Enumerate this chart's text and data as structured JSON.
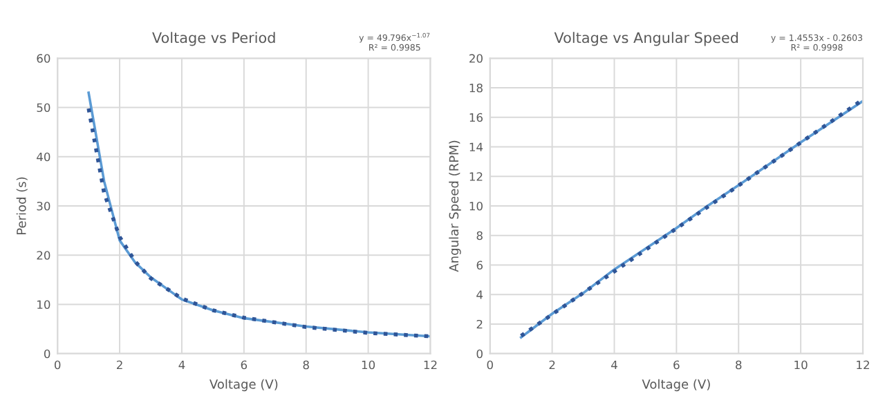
{
  "chart_data": [
    {
      "type": "line",
      "title": "Voltage vs Period",
      "xlabel": "Voltage (V)",
      "ylabel": "Period (s)",
      "annotations": [
        "y = 49.796x$^{−1.07}$\nR² = 0.9985"
      ],
      "series": [
        {
          "color": "#5b9bd5",
          "line_style": "solid",
          "x": [
            1,
            1.5,
            2,
            2.5,
            3,
            4,
            5,
            6,
            8,
            10,
            12
          ],
          "values": [
            53,
            35,
            23,
            18.5,
            15.5,
            11,
            8.8,
            7.2,
            5.5,
            4.3,
            3.5
          ]
        },
        {
          "color": "#2f5597",
          "line_style": "dotted",
          "x": [
            1,
            1.5,
            2,
            2.5,
            3,
            4,
            5,
            6,
            8,
            10,
            12
          ],
          "values": [
            49.8,
            32.6,
            23.7,
            18.7,
            15.3,
            11.2,
            8.8,
            7.3,
            5.4,
            4.2,
            3.5
          ]
        }
      ],
      "xlim": [
        0,
        12
      ],
      "xticks": [
        0,
        2,
        4,
        6,
        8,
        10,
        12
      ],
      "ylim": [
        0,
        60
      ],
      "yticks": [
        0,
        10,
        20,
        30,
        40,
        50,
        60
      ],
      "grid": true,
      "marker": "none"
    },
    {
      "type": "line",
      "title": "Voltage vs Angular Speed",
      "xlabel": "Voltage (V)",
      "ylabel": "Angular Speed (RPM)",
      "annotations": [
        "y = 1.4553x - 0.2603\nR² = 0.9998"
      ],
      "series": [
        {
          "color": "#5b9bd5",
          "line_style": "solid",
          "x": [
            1,
            2,
            3,
            4,
            5,
            6,
            7,
            8,
            10,
            12
          ],
          "values": [
            1.1,
            2.7,
            4.1,
            5.7,
            7.1,
            8.5,
            10,
            11.4,
            14.3,
            17.1
          ]
        },
        {
          "color": "#2f5597",
          "line_style": "dotted",
          "x": [
            1,
            12
          ],
          "values": [
            1.2,
            17.2
          ]
        }
      ],
      "xlim": [
        0,
        12
      ],
      "xticks": [
        0,
        2,
        4,
        6,
        8,
        10,
        12
      ],
      "ylim": [
        0,
        20
      ],
      "yticks": [
        0,
        2,
        4,
        6,
        8,
        10,
        12,
        14,
        16,
        18,
        20
      ],
      "grid": true,
      "marker": "none"
    }
  ]
}
